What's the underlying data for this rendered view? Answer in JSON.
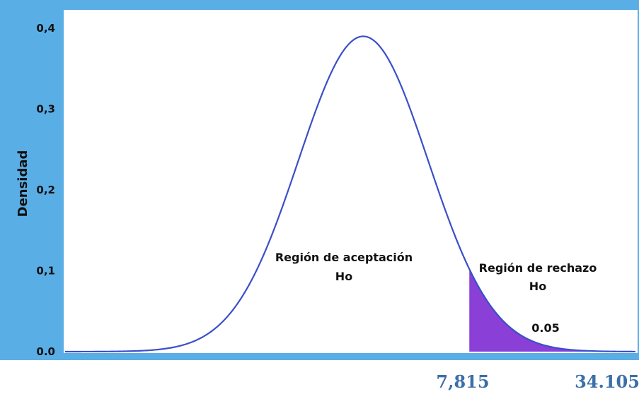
{
  "chart_data": {
    "type": "area",
    "title": "",
    "xlabel": "",
    "ylabel": "Densidad",
    "ylim": [
      0,
      0.4
    ],
    "y_ticks": [
      {
        "value": 0,
        "label": "0.0"
      },
      {
        "value": 0.1,
        "label": "0,1"
      },
      {
        "value": 0.2,
        "label": "0,2"
      },
      {
        "value": 0.3,
        "label": "0,3"
      },
      {
        "value": 0.4,
        "label": "0,4"
      }
    ],
    "x_markers": [
      {
        "value": 7.815,
        "label": "7,815"
      },
      {
        "value": 34.105,
        "label": "34.105"
      }
    ],
    "distribution": {
      "mean": 0,
      "sd": 1,
      "peak": 0.39
    },
    "critical_value": 7.815,
    "alpha": 0.05,
    "annotations": {
      "acceptance": [
        "Región de aceptación",
        "Ho"
      ],
      "rejection": [
        "Región de rechazo",
        "Ho"
      ],
      "alpha_label": "0.05"
    },
    "grid": false,
    "colors": {
      "frame": "#5aaee6",
      "curve": "#3a4fc8",
      "rejection_fill": "#8a3fd6",
      "marker_text": "#3b6fa8"
    }
  }
}
